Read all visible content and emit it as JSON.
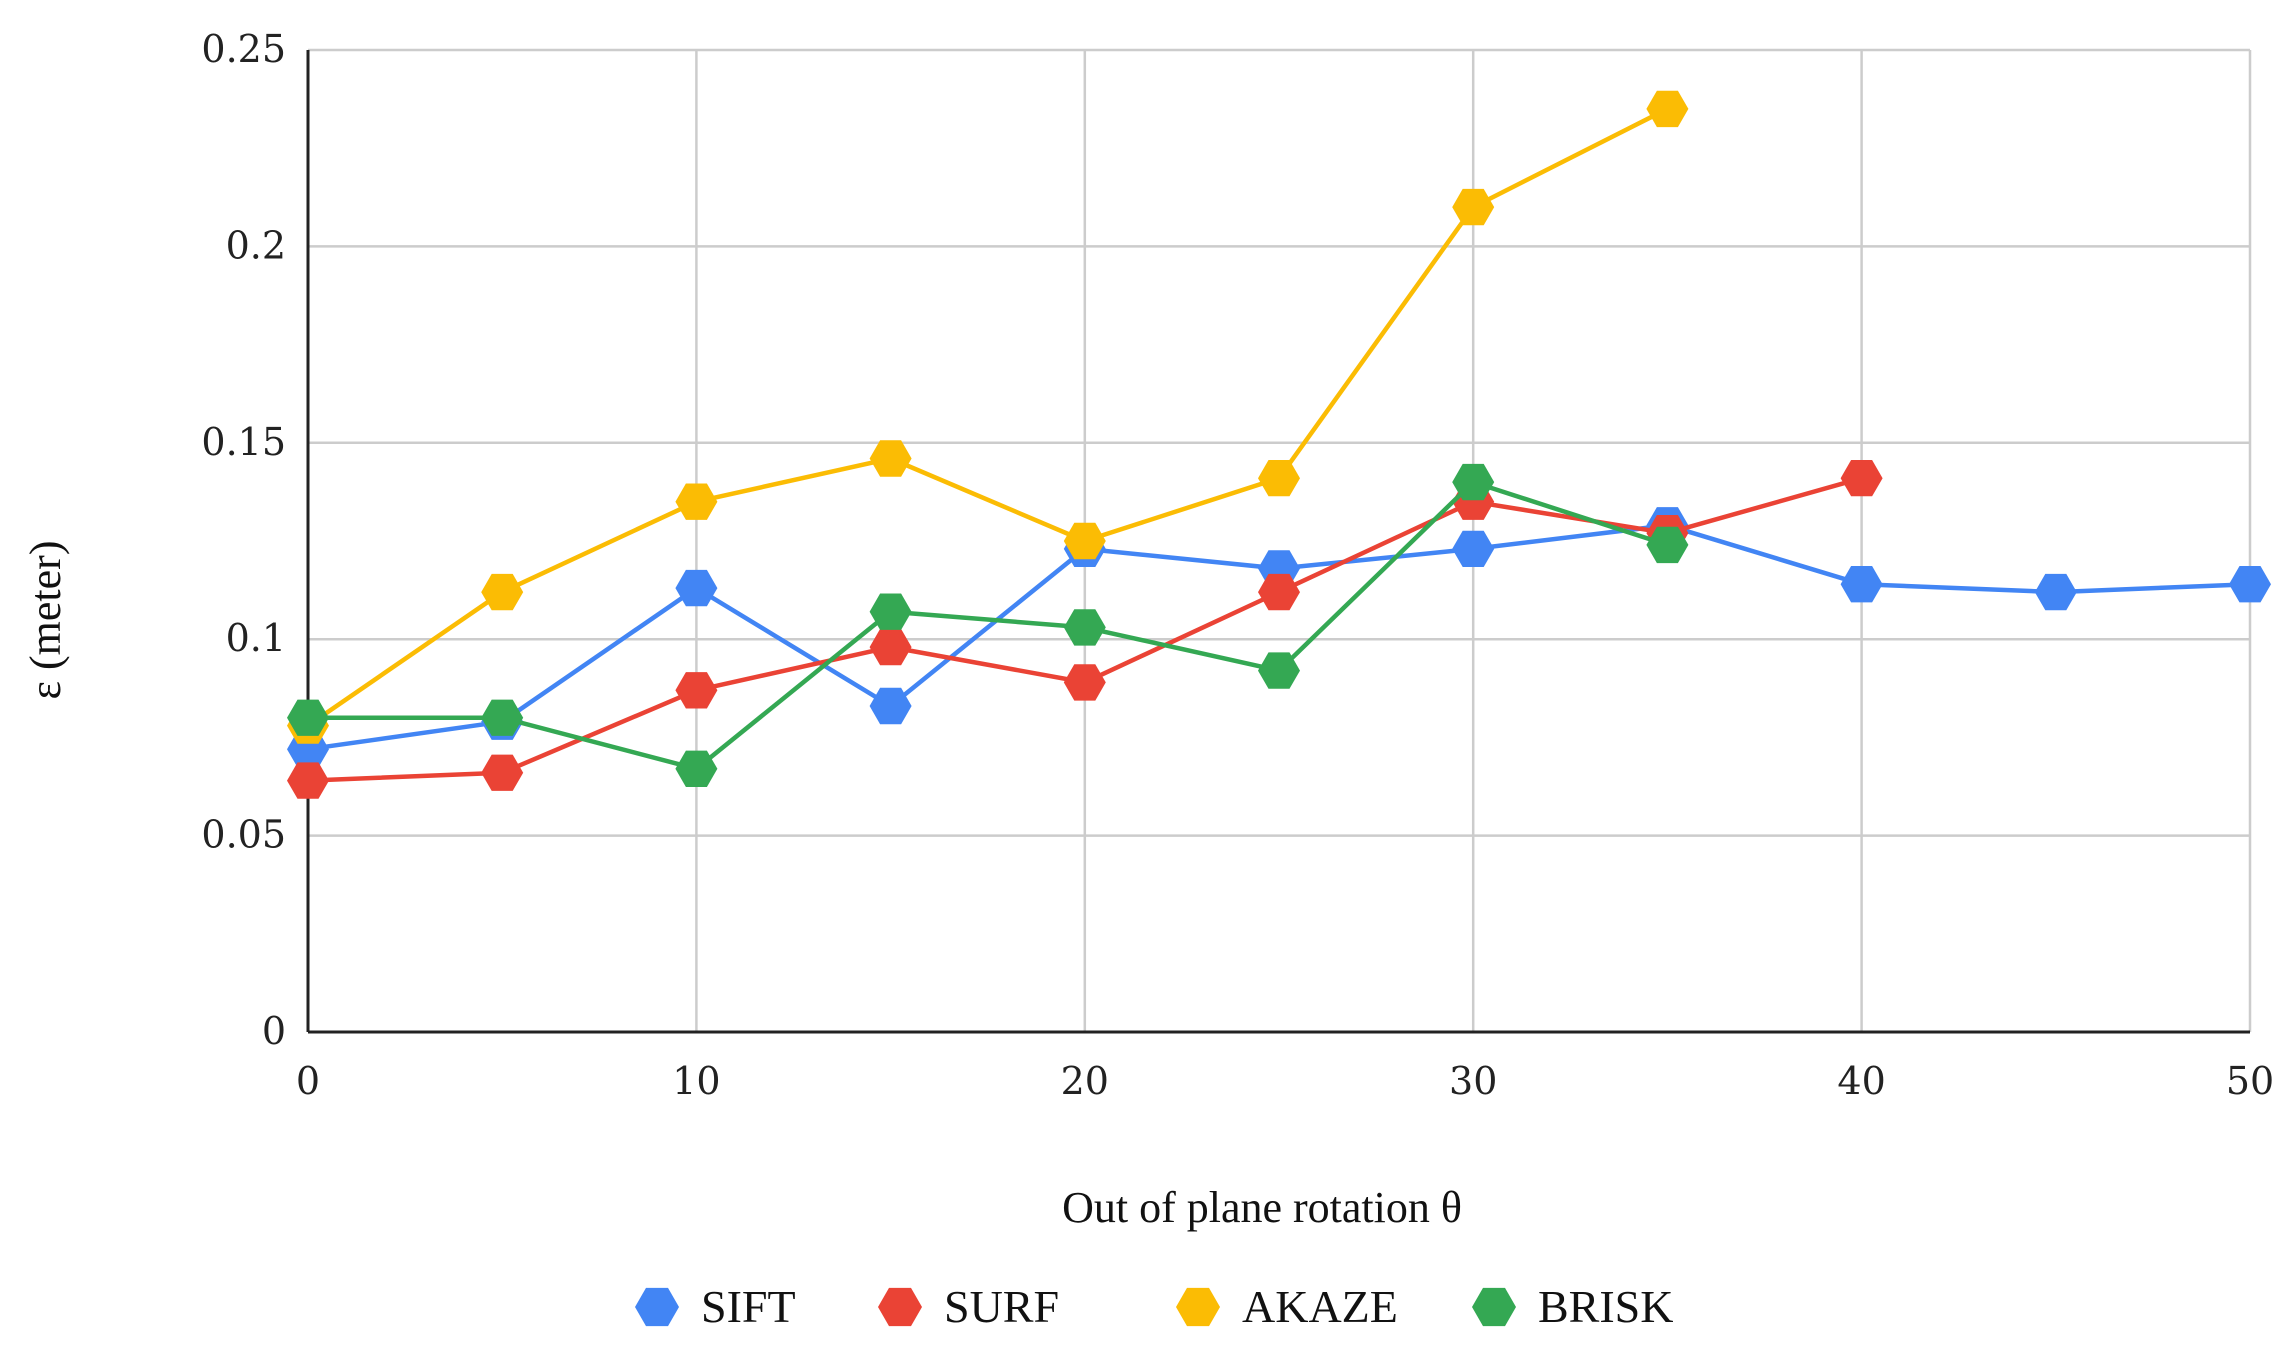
{
  "chart_data": {
    "type": "line",
    "title": "",
    "xlabel": "Out of plane rotation θ",
    "ylabel": "ε (meter)",
    "xlim": [
      0,
      50
    ],
    "ylim": [
      0,
      0.25
    ],
    "xticks": [
      0,
      10,
      20,
      30,
      40,
      50
    ],
    "yticks": [
      0,
      0.05,
      0.1,
      0.15,
      0.2,
      0.25
    ],
    "xtick_labels": [
      "0",
      "10",
      "20",
      "30",
      "40",
      "50"
    ],
    "ytick_labels": [
      "0",
      "0.05",
      "0.1",
      "0.15",
      "0.2",
      "0.25"
    ],
    "grid": true,
    "legend_position": "bottom-center",
    "marker": "hexagon",
    "series": [
      {
        "name": "SIFT",
        "color": "#4285F4",
        "x": [
          0,
          5,
          10,
          15,
          20,
          25,
          30,
          35,
          40,
          45,
          50
        ],
        "y": [
          0.072,
          0.079,
          0.113,
          0.083,
          0.123,
          0.118,
          0.123,
          0.129,
          0.114,
          0.112,
          0.114
        ]
      },
      {
        "name": "SURF",
        "color": "#EA4335",
        "x": [
          0,
          5,
          10,
          15,
          20,
          25,
          30,
          35,
          40
        ],
        "y": [
          0.064,
          0.066,
          0.087,
          0.098,
          0.089,
          0.112,
          0.135,
          0.127,
          0.141
        ]
      },
      {
        "name": "AKAZE",
        "color": "#FBBC04",
        "x": [
          0,
          5,
          10,
          15,
          20,
          25,
          30,
          35
        ],
        "y": [
          0.078,
          0.112,
          0.135,
          0.146,
          0.125,
          0.141,
          0.21,
          0.235
        ]
      },
      {
        "name": "BRISK",
        "color": "#34A853",
        "x": [
          0,
          5,
          10,
          15,
          20,
          25,
          30,
          35
        ],
        "y": [
          0.08,
          0.08,
          0.067,
          0.107,
          0.103,
          0.092,
          0.14,
          0.124
        ]
      }
    ]
  }
}
